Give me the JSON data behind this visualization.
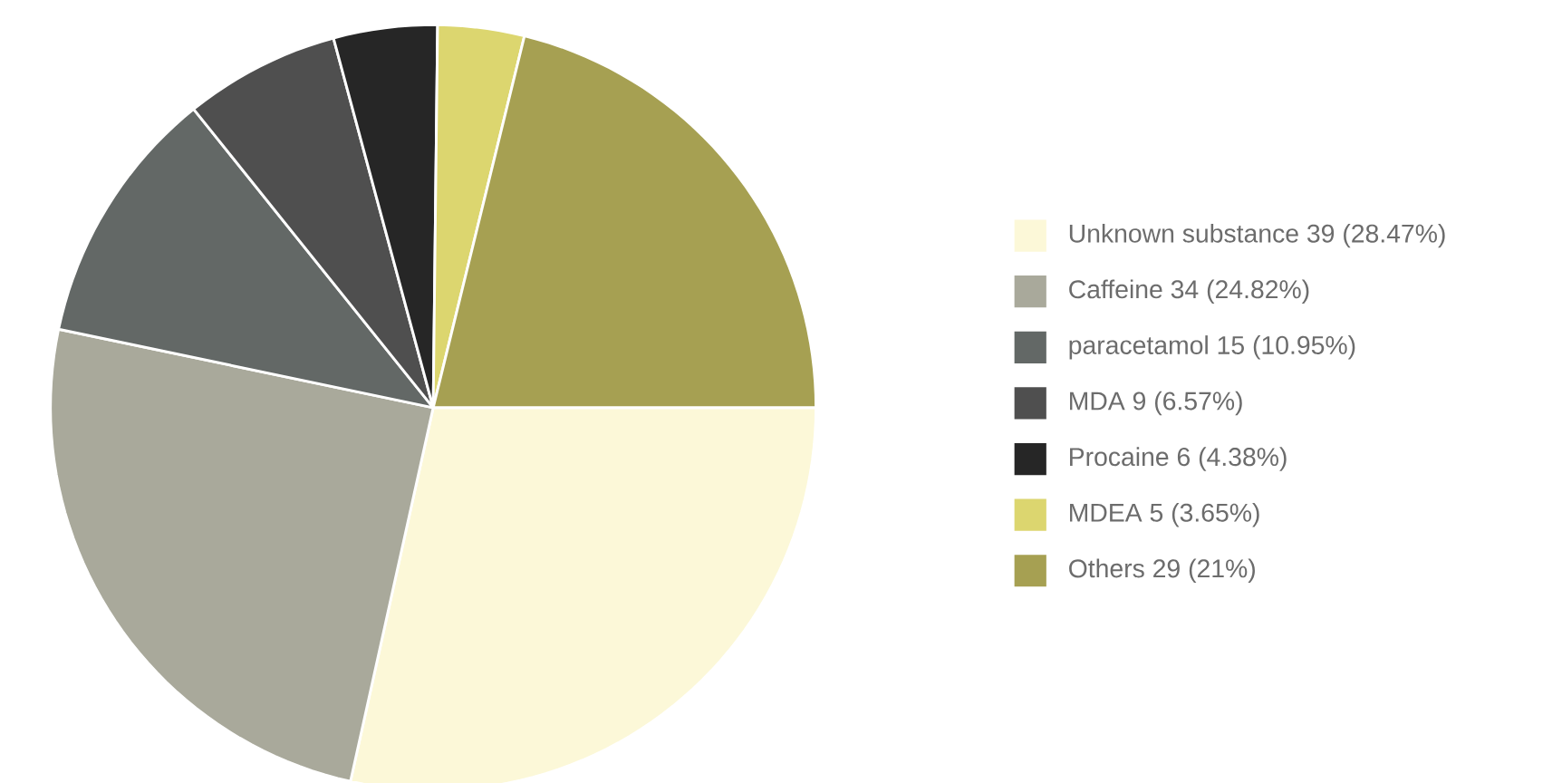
{
  "chart_data": {
    "type": "pie",
    "categories": [
      "Unknown substance 39 (28.47%)",
      "Caffeine 34 (24.82%)",
      "paracetamol 15 (10.95%)",
      "MDA 9 (6.57%)",
      "Procaine 6 (4.38%)",
      "MDEA 5 (3.65%)",
      "Others 29 (21%)"
    ],
    "values": [
      39,
      34,
      15,
      9,
      6,
      5,
      29
    ],
    "colors": [
      "#fcf8d8",
      "#a9a99b",
      "#636866",
      "#4f4f4f",
      "#262626",
      "#dcd66f",
      "#a6a052"
    ],
    "legend": "right"
  }
}
